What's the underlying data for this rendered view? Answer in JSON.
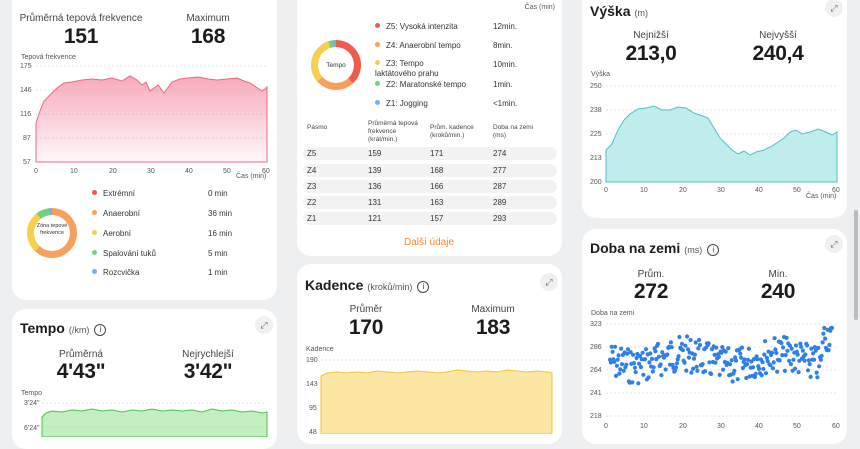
{
  "hr_card": {
    "avg_label": "Průměrná tepová frekvence",
    "avg_value": "151",
    "max_label": "Maximum",
    "max_value": "168",
    "chart_label": "Tepová frekvence",
    "y_ticks": [
      "175",
      "146",
      "116",
      "87",
      "57"
    ],
    "x_ticks": [
      "0",
      "10",
      "20",
      "30",
      "40",
      "50",
      "60"
    ],
    "x_unit": "Čas (min)",
    "donut_label": "Zóna tepové frekvence",
    "zones": [
      {
        "name": "Extrémní",
        "value": "0 min",
        "color": "#f25a4a",
        "minutes": 0
      },
      {
        "name": "Anaerobní",
        "value": "36 min",
        "color": "#f7a05c",
        "minutes": 36
      },
      {
        "name": "Aerobní",
        "value": "16 min",
        "color": "#f7cf4f",
        "minutes": 16
      },
      {
        "name": "Spalování tuků",
        "value": "5 min",
        "color": "#73d17a",
        "minutes": 5
      },
      {
        "name": "Rozcvička",
        "value": "1 min",
        "color": "#6fb1ee",
        "minutes": 1
      }
    ]
  },
  "tempo_card": {
    "title": "Tempo",
    "unit": "(/km)",
    "avg_label": "Průměrná",
    "avg_value": "4'43\"",
    "best_label": "Nejrychlejší",
    "best_value": "3'42\"",
    "chart_label": "Tempo",
    "y_ticks": [
      "3'24\"",
      "6'24\""
    ]
  },
  "zone_card": {
    "top_axis_unit": "Čas (min)",
    "donut_label": "Tempo",
    "zones": [
      {
        "name": "Z5: Vysoká intenzita",
        "value": "12min.",
        "color": "#f25a4a",
        "minutes": 12
      },
      {
        "name": "Z4: Anaerobní tempo",
        "value": "8min.",
        "color": "#f7a05c",
        "minutes": 8
      },
      {
        "name": "Z3: Tempo laktátového prahu",
        "value": "10min.",
        "color": "#f7cf4f",
        "minutes": 10
      },
      {
        "name": "Z2: Maratonské tempo",
        "value": "1min.",
        "color": "#73d17a",
        "minutes": 1
      },
      {
        "name": "Z1: Jogging",
        "value": "<1min.",
        "color": "#6fb1ee",
        "minutes": 0.5
      }
    ],
    "table_headers": [
      "Pásmo",
      "Průměrná tepová frekvence (krát/min.)",
      "Prům. kadence (kroků/min.)",
      "Doba na zemi (ms)"
    ],
    "table_rows": [
      [
        "Z5",
        "159",
        "171",
        "274"
      ],
      [
        "Z4",
        "139",
        "168",
        "277"
      ],
      [
        "Z3",
        "136",
        "166",
        "287"
      ],
      [
        "Z2",
        "131",
        "163",
        "289"
      ],
      [
        "Z1",
        "121",
        "157",
        "293"
      ]
    ],
    "more_link": "Další údaje"
  },
  "cadence_card": {
    "title": "Kadence",
    "unit": "(kroků/min)",
    "avg_label": "Průměr",
    "avg_value": "170",
    "max_label": "Maximum",
    "max_value": "183",
    "chart_label": "Kadence",
    "y_ticks": [
      "190",
      "143",
      "95",
      "48"
    ]
  },
  "altitude_card": {
    "title": "Výška",
    "unit": "(m)",
    "min_label": "Nejnižší",
    "min_value": "213,0",
    "max_label": "Nejvyšší",
    "max_value": "240,4",
    "chart_label": "Výška",
    "y_ticks": [
      "250",
      "238",
      "225",
      "213",
      "200"
    ],
    "x_ticks": [
      "0",
      "10",
      "20",
      "30",
      "40",
      "50",
      "60"
    ],
    "x_unit": "Čas (min)"
  },
  "gct_card": {
    "title": "Doba na zemi",
    "unit": "(ms)",
    "avg_label": "Prům.",
    "avg_value": "272",
    "min_label": "Min.",
    "min_value": "240",
    "chart_label": "Doba na zemi",
    "y_ticks": [
      "323",
      "286",
      "264",
      "241",
      "218"
    ],
    "x_ticks": [
      "0",
      "10",
      "20",
      "30",
      "40",
      "50",
      "60"
    ]
  },
  "colors": {
    "hr": "#f06582",
    "tempo": "#5ccf5c",
    "cadence": "#f7c94a",
    "altitude": "#6cd0d4",
    "gct": "#2f7fe8",
    "link": "#f08a2c"
  }
}
